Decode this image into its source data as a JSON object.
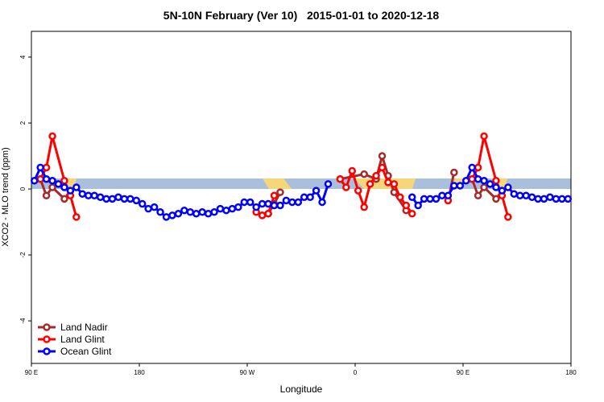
{
  "chart_data": {
    "type": "line",
    "title": "5N-10N February (Ver 10)   2015-01-01 to 2020-12-18",
    "x_label": "Longitude",
    "y_label": "XCO2 - MLO trend (ppm)",
    "xlim": [
      90,
      540
    ],
    "ylim": [
      -5.29,
      4.78
    ],
    "xticks": [
      {
        "value": 90,
        "label": "90 E"
      },
      180,
      {
        "value": 270,
        "label": "90 W"
      },
      {
        "value": 360,
        "label": "0"
      },
      {
        "value": 450,
        "label": "90 E"
      },
      {
        "value": 540,
        "label": "180"
      }
    ],
    "yticks": [
      -4,
      -2,
      0,
      2,
      4
    ],
    "grid": false,
    "legend": "bottom left",
    "series": [
      {
        "name": "Land Nadir",
        "color": "#a52a2a",
        "x": [
          97.5,
          102.5,
          107.5,
          117.5,
          122.5,
          null,
          282.5,
          287.5,
          292.5,
          297.5,
          null,
          347.5,
          367.5,
          377.5,
          382.5,
          387.5,
          392.5,
          402.5,
          null,
          437.5,
          442.5,
          null,
          457.5,
          462.5,
          467.5,
          477.5,
          482.5
        ],
        "values": [
          0.3,
          -0.2,
          0.05,
          -0.3,
          -0.05,
          null,
          -0.8,
          -0.75,
          -0.45,
          -0.1,
          null,
          0.3,
          0.45,
          0.3,
          1.0,
          0.4,
          -0.1,
          -0.65,
          null,
          -0.35,
          0.5,
          null,
          0.3,
          -0.2,
          0.05,
          -0.3,
          -0.05
        ]
      },
      {
        "name": "Land Glint",
        "color": "#ff0000",
        "x": [
          97.5,
          102.5,
          107.5,
          117.5,
          122.5,
          127.5,
          null,
          277.5,
          282.5,
          287.5,
          292.5,
          null,
          347.5,
          352.5,
          357.5,
          362.5,
          367.5,
          372.5,
          377.5,
          382.5,
          387.5,
          392.5,
          397.5,
          402.5,
          407.5,
          null,
          437.5,
          null,
          457.5,
          462.5,
          467.5,
          477.5,
          482.5,
          487.5
        ],
        "values": [
          0.3,
          0.65,
          1.6,
          0.25,
          -0.2,
          -0.85,
          null,
          -0.7,
          -0.8,
          -0.75,
          -0.2,
          null,
          0.3,
          0.05,
          0.55,
          -0.05,
          -0.55,
          0.15,
          0.4,
          0.65,
          0.2,
          0.15,
          -0.25,
          -0.5,
          -0.75,
          null,
          -0.35,
          null,
          0.3,
          0.65,
          1.6,
          0.25,
          -0.2,
          -0.85
        ]
      },
      {
        "name": "Ocean Glint",
        "color": "#0000ff",
        "x": [
          92.5,
          97.5,
          102.5,
          107.5,
          112.5,
          117.5,
          122.5,
          127.5,
          132.5,
          137.5,
          142.5,
          147.5,
          152.5,
          157.5,
          162.5,
          167.5,
          172.5,
          177.5,
          182.5,
          187.5,
          192.5,
          197.5,
          202.5,
          207.5,
          212.5,
          217.5,
          222.5,
          227.5,
          232.5,
          237.5,
          242.5,
          247.5,
          252.5,
          257.5,
          262.5,
          267.5,
          272.5,
          277.5,
          282.5,
          287.5,
          292.5,
          297.5,
          302.5,
          307.5,
          312.5,
          317.5,
          322.5,
          327.5,
          332.5,
          337.5,
          null,
          407.5,
          412.5,
          417.5,
          422.5,
          427.5,
          432.5,
          437.5,
          442.5,
          447.5,
          452.5,
          457.5,
          462.5,
          467.5,
          472.5,
          477.5,
          482.5,
          487.5,
          492.5,
          497.5,
          502.5,
          507.5,
          512.5,
          517.5,
          522.5,
          527.5,
          532.5,
          537.5
        ],
        "values": [
          0.25,
          0.65,
          0.3,
          0.25,
          0.15,
          0.05,
          -0.05,
          0.05,
          -0.15,
          -0.2,
          -0.2,
          -0.25,
          -0.3,
          -0.3,
          -0.25,
          -0.3,
          -0.3,
          -0.35,
          -0.45,
          -0.6,
          -0.55,
          -0.7,
          -0.85,
          -0.8,
          -0.75,
          -0.65,
          -0.7,
          -0.75,
          -0.7,
          -0.75,
          -0.7,
          -0.6,
          -0.65,
          -0.6,
          -0.55,
          -0.4,
          -0.4,
          -0.55,
          -0.45,
          -0.45,
          -0.5,
          -0.5,
          -0.35,
          -0.4,
          -0.4,
          -0.25,
          -0.25,
          -0.05,
          -0.4,
          0.15,
          null,
          -0.25,
          -0.5,
          -0.3,
          -0.3,
          -0.3,
          -0.2,
          -0.2,
          0.1,
          0.1,
          0.25,
          0.65,
          0.3,
          0.25,
          0.15,
          0.05,
          -0.05,
          0.05,
          -0.15,
          -0.2,
          -0.2,
          -0.25,
          -0.3,
          -0.3,
          -0.25,
          -0.3,
          -0.3,
          -0.3
        ]
      }
    ]
  }
}
